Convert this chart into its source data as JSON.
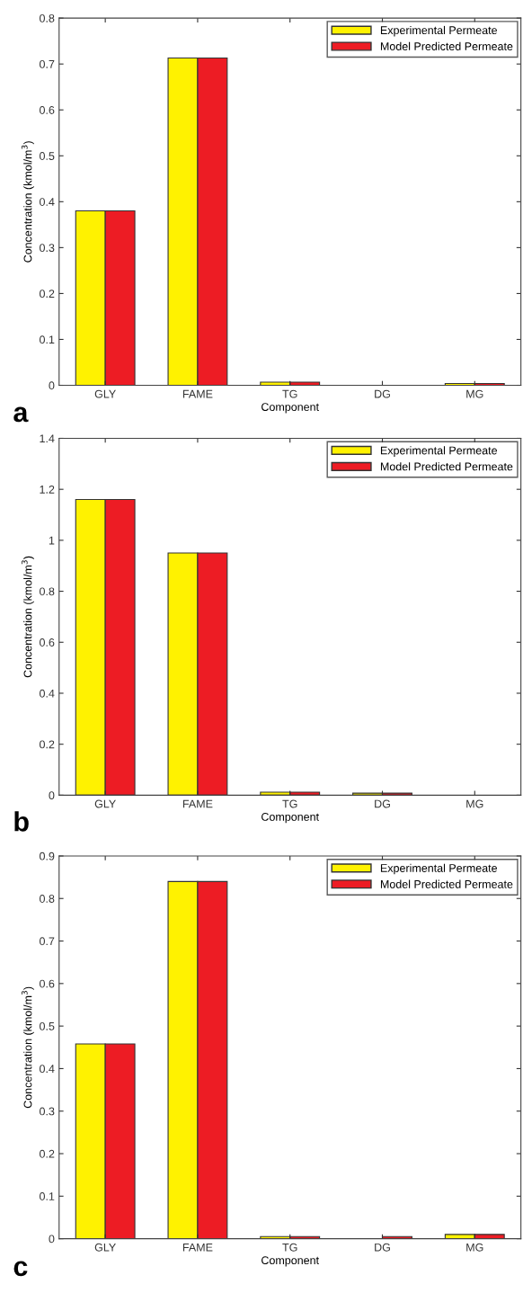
{
  "chart_data": [
    {
      "type": "bar",
      "xlabel": "Component",
      "ylabel": "Concentration (kmol/m$^{3}$)",
      "categories": [
        "GLY",
        "FAME",
        "TG",
        "DG",
        "MG"
      ],
      "ylim": [
        0,
        0.8
      ],
      "yticks": [
        0,
        0.1,
        0.2,
        0.3,
        0.4,
        0.5,
        0.6,
        0.7,
        0.8
      ],
      "legend": "top right",
      "annotations": [
        "a"
      ],
      "series": [
        {
          "name": "Experimental Permeate",
          "color": "#fff200",
          "values": [
            0.38,
            0.713,
            0.007,
            null,
            0.004
          ]
        },
        {
          "name": "Model Predicted Permeate",
          "color": "#ed1c24",
          "values": [
            0.38,
            0.713,
            0.007,
            null,
            0.004
          ]
        }
      ]
    },
    {
      "type": "bar",
      "xlabel": "Component",
      "ylabel": "Concentration (kmol/m$^{3}$)",
      "categories": [
        "GLY",
        "FAME",
        "TG",
        "DG",
        "MG"
      ],
      "ylim": [
        0,
        1.4
      ],
      "yticks": [
        0,
        0.2,
        0.4,
        0.6,
        0.8,
        1,
        1.2,
        1.4
      ],
      "legend": "top right",
      "annotations": [
        "b"
      ],
      "series": [
        {
          "name": "Experimental Permeate",
          "color": "#fff200",
          "values": [
            1.16,
            0.95,
            0.012,
            0.008,
            null
          ]
        },
        {
          "name": "Model Predicted Permeate",
          "color": "#ed1c24",
          "values": [
            1.16,
            0.95,
            0.012,
            0.008,
            null
          ]
        }
      ]
    },
    {
      "type": "bar",
      "xlabel": "Component",
      "ylabel": "Concentration (kmol/m$^{3}$)",
      "categories": [
        "GLY",
        "FAME",
        "TG",
        "DG",
        "MG"
      ],
      "ylim": [
        0,
        0.9
      ],
      "yticks": [
        0,
        0.1,
        0.2,
        0.3,
        0.4,
        0.5,
        0.6,
        0.7,
        0.8,
        0.9
      ],
      "legend": "top right",
      "annotations": [
        "c"
      ],
      "series": [
        {
          "name": "Experimental Permeate",
          "color": "#fff200",
          "values": [
            0.458,
            0.84,
            0.005,
            null,
            0.01
          ]
        },
        {
          "name": "Model Predicted Permeate",
          "color": "#ed1c24",
          "values": [
            0.458,
            0.84,
            0.005,
            0.005,
            0.01
          ]
        }
      ]
    }
  ]
}
